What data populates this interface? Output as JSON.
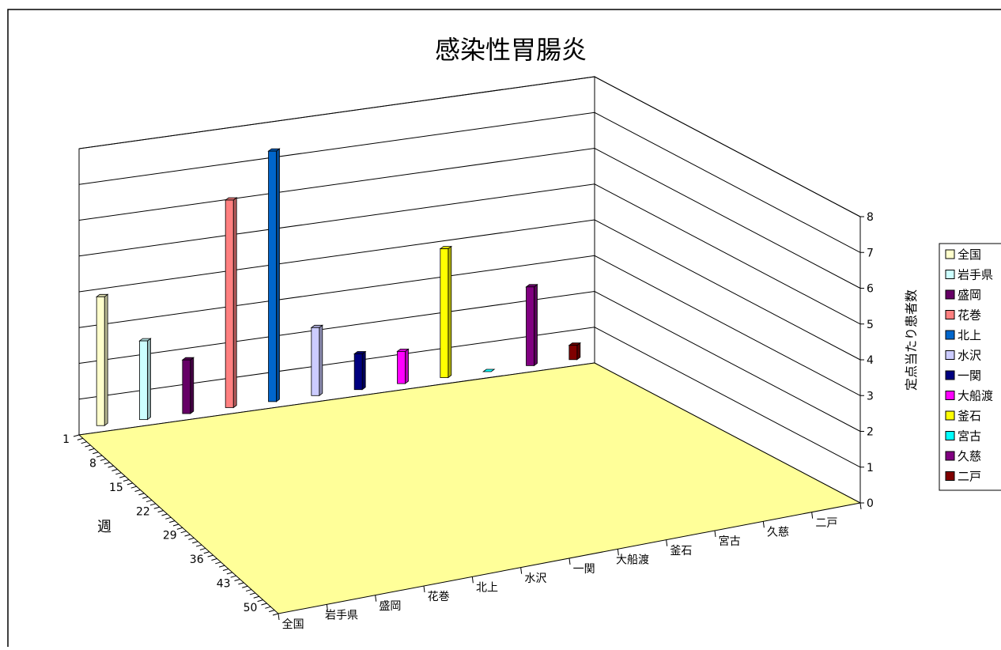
{
  "chart_data": {
    "type": "bar",
    "title": "感染性胃腸炎",
    "xlabel": "",
    "ylabel": "定点当たり患者数",
    "week_axis_label": "週",
    "categories": [
      "全国",
      "岩手県",
      "盛岡",
      "花巻",
      "北上",
      "水沢",
      "一関",
      "大船渡",
      "釜石",
      "宮古",
      "久慈",
      "二戸"
    ],
    "week_ticks": [
      "1",
      "8",
      "15",
      "22",
      "29",
      "36",
      "43",
      "50"
    ],
    "y_ticks": [
      "0",
      "1",
      "2",
      "3",
      "4",
      "5",
      "6",
      "7",
      "8"
    ],
    "ylim": [
      0,
      8
    ],
    "week": 1,
    "values": [
      3.6,
      2.2,
      1.5,
      5.8,
      7.0,
      1.9,
      1.0,
      0.9,
      3.6,
      0,
      2.2,
      0.4
    ],
    "series": [
      {
        "name": "全国",
        "color": "#FFFFCC"
      },
      {
        "name": "岩手県",
        "color": "#CCFFFF"
      },
      {
        "name": "盛岡",
        "color": "#660066"
      },
      {
        "name": "花巻",
        "color": "#FF8080"
      },
      {
        "name": "北上",
        "color": "#0066CC"
      },
      {
        "name": "水沢",
        "color": "#CCCCFF"
      },
      {
        "name": "一関",
        "color": "#000080"
      },
      {
        "name": "大船渡",
        "color": "#FF00FF"
      },
      {
        "name": "釜石",
        "color": "#FFFF00"
      },
      {
        "name": "宮古",
        "color": "#00FFFF"
      },
      {
        "name": "久慈",
        "color": "#800080"
      },
      {
        "name": "二戸",
        "color": "#800000"
      }
    ],
    "legend_position": "right",
    "grid": true,
    "floor_color": "#FFFF99"
  }
}
